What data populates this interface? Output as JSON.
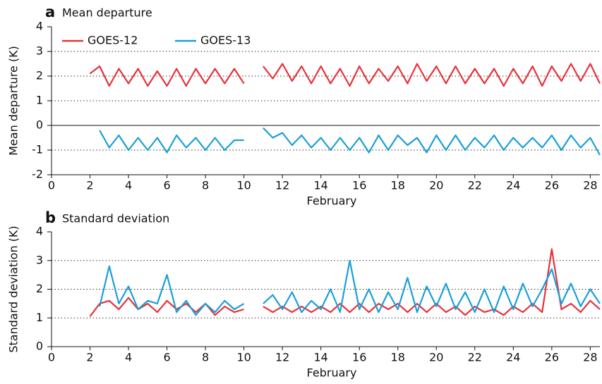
{
  "chart_data": [
    {
      "type": "line",
      "label": "a",
      "title": "Mean departure",
      "ylabel": "Mean departure (K)",
      "xlabel": "February",
      "x": [
        2,
        2.5,
        3,
        3.5,
        4,
        4.5,
        5,
        5.5,
        6,
        6.5,
        7,
        7.5,
        8,
        8.5,
        9,
        9.5,
        10,
        10.5,
        11,
        11.5,
        12,
        12.5,
        13,
        13.5,
        14,
        14.5,
        15,
        15.5,
        16,
        16.5,
        17,
        17.5,
        18,
        18.5,
        19,
        19.5,
        20,
        20.5,
        21,
        21.5,
        22,
        22.5,
        23,
        23.5,
        24,
        24.5,
        25,
        25.5,
        26,
        26.5,
        27,
        27.5,
        28,
        28.5
      ],
      "series": [
        {
          "name": "GOES-12",
          "color": "#e8323a",
          "values": [
            2.1,
            2.4,
            1.6,
            2.3,
            1.7,
            2.3,
            1.6,
            2.2,
            1.6,
            2.3,
            1.6,
            2.3,
            1.7,
            2.3,
            1.7,
            2.3,
            1.7,
            null,
            2.4,
            1.9,
            2.5,
            1.8,
            2.4,
            1.7,
            2.4,
            1.7,
            2.3,
            1.6,
            2.4,
            1.7,
            2.3,
            1.8,
            2.4,
            1.7,
            2.5,
            1.8,
            2.4,
            1.7,
            2.4,
            1.7,
            2.3,
            1.7,
            2.3,
            1.6,
            2.3,
            1.7,
            2.4,
            1.6,
            2.4,
            1.8,
            2.5,
            1.8,
            2.5,
            1.7
          ]
        },
        {
          "name": "GOES-13",
          "color": "#1a9fd9",
          "values": [
            null,
            -0.2,
            -0.9,
            -0.4,
            -1.0,
            -0.5,
            -1.0,
            -0.5,
            -1.1,
            -0.4,
            -0.9,
            -0.5,
            -1.0,
            -0.5,
            -1.0,
            -0.6,
            -0.6,
            null,
            -0.1,
            -0.5,
            -0.3,
            -0.8,
            -0.4,
            -0.9,
            -0.5,
            -1.0,
            -0.5,
            -1.0,
            -0.5,
            -1.1,
            -0.4,
            -1.0,
            -0.4,
            -0.8,
            -0.5,
            -1.1,
            -0.4,
            -1.0,
            -0.4,
            -1.0,
            -0.5,
            -0.9,
            -0.4,
            -1.0,
            -0.5,
            -0.9,
            -0.5,
            -0.9,
            -0.4,
            -1.0,
            -0.4,
            -0.9,
            -0.5,
            -1.2
          ]
        }
      ],
      "xlim": [
        0,
        28.5
      ],
      "xticks": [
        0,
        2,
        4,
        6,
        8,
        10,
        12,
        14,
        16,
        18,
        20,
        22,
        24,
        26,
        28
      ],
      "ylim": [
        -2,
        4
      ],
      "yticks": [
        -2,
        -1,
        0,
        1,
        2,
        3,
        4
      ],
      "grid": true,
      "zero_line": true,
      "legend": "top-left"
    },
    {
      "type": "line",
      "label": "b",
      "title": "Standard deviation",
      "ylabel": "Standard deviation (K)",
      "xlabel": "February",
      "x": [
        2,
        2.5,
        3,
        3.5,
        4,
        4.5,
        5,
        5.5,
        6,
        6.5,
        7,
        7.5,
        8,
        8.5,
        9,
        9.5,
        10,
        10.5,
        11,
        11.5,
        12,
        12.5,
        13,
        13.5,
        14,
        14.5,
        15,
        15.5,
        16,
        16.5,
        17,
        17.5,
        18,
        18.5,
        19,
        19.5,
        20,
        20.5,
        21,
        21.5,
        22,
        22.5,
        23,
        23.5,
        24,
        24.5,
        25,
        25.5,
        26,
        26.5,
        27,
        27.5,
        28,
        28.5
      ],
      "series": [
        {
          "color": "#e8323a",
          "values": [
            1.05,
            1.5,
            1.6,
            1.3,
            1.7,
            1.3,
            1.5,
            1.2,
            1.6,
            1.3,
            1.5,
            1.2,
            1.5,
            1.1,
            1.4,
            1.2,
            1.3,
            null,
            1.4,
            1.2,
            1.4,
            1.2,
            1.4,
            1.2,
            1.4,
            1.2,
            1.5,
            1.2,
            1.5,
            1.2,
            1.5,
            1.3,
            1.5,
            1.2,
            1.5,
            1.2,
            1.5,
            1.2,
            1.4,
            1.1,
            1.4,
            1.2,
            1.3,
            1.1,
            1.4,
            1.2,
            1.5,
            1.2,
            3.4,
            1.3,
            1.5,
            1.2,
            1.6,
            1.3
          ]
        },
        {
          "color": "#1a9fd9",
          "values": [
            null,
            1.4,
            2.8,
            1.5,
            2.1,
            1.3,
            1.6,
            1.5,
            2.5,
            1.2,
            1.6,
            1.1,
            1.5,
            1.2,
            1.6,
            1.3,
            1.5,
            null,
            1.5,
            1.8,
            1.3,
            1.9,
            1.2,
            1.6,
            1.3,
            2.0,
            1.2,
            3.0,
            1.3,
            2.0,
            1.2,
            1.9,
            1.3,
            2.4,
            1.2,
            2.1,
            1.4,
            2.2,
            1.3,
            1.9,
            1.2,
            2.0,
            1.2,
            2.1,
            1.3,
            2.2,
            1.4,
            2.0,
            2.7,
            1.5,
            2.2,
            1.4,
            2.0,
            1.5
          ]
        }
      ],
      "xlim": [
        0,
        28.5
      ],
      "xticks": [
        0,
        2,
        4,
        6,
        8,
        10,
        12,
        14,
        16,
        18,
        20,
        22,
        24,
        26,
        28
      ],
      "ylim": [
        0,
        4
      ],
      "yticks": [
        0,
        1,
        2,
        3,
        4
      ],
      "grid": true
    }
  ]
}
